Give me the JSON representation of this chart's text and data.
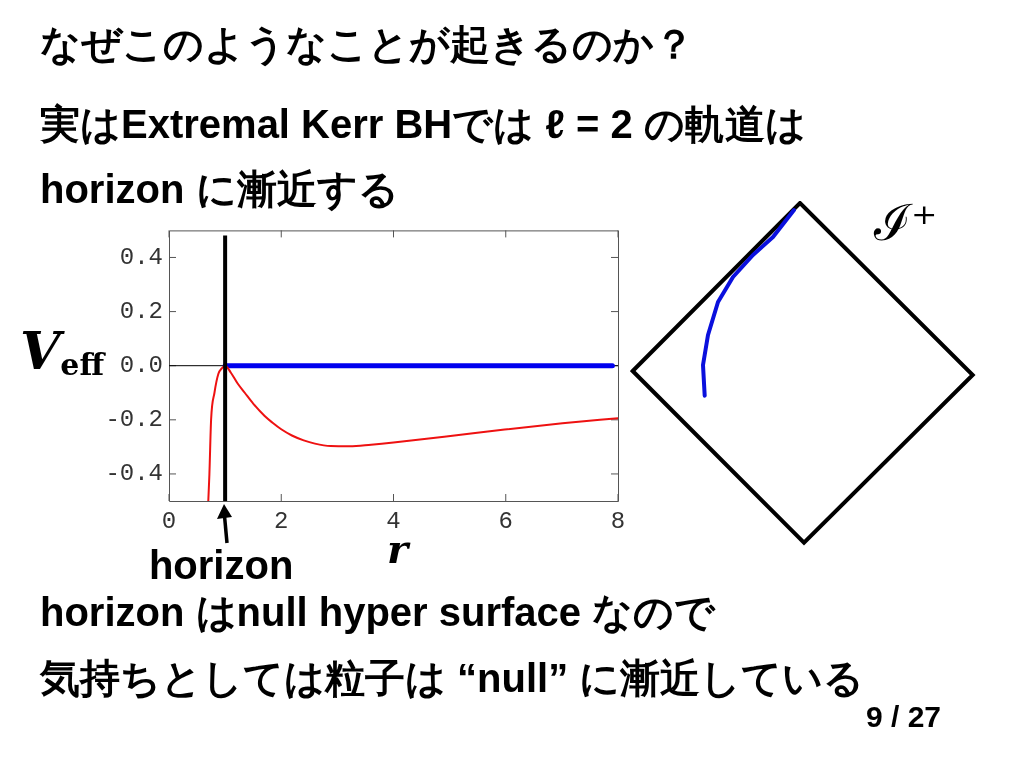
{
  "chart_data": {
    "type": "line",
    "title": "なぜこのようなことが起きるのか？",
    "subtitle": "実はExtremal Kerr BHでは ℓ = 2 の軌道は\nhorizon に漸近する",
    "xlabel": "r",
    "ylabel": "V$_{eff}$",
    "xlim": [
      0,
      8
    ],
    "ylim": [
      -0.5,
      0.5
    ],
    "xticks": [
      0,
      2,
      4,
      6,
      8
    ],
    "yticks": [
      -0.4,
      -0.2,
      {
        "value": 0,
        "label": "0.0"
      },
      0.2,
      0.4
    ],
    "series": [
      {
        "color": "#ee1111",
        "x": [
          0.7,
          0.72,
          0.75,
          0.81,
          0.88,
          0.94,
          1.0,
          1.1,
          1.22,
          1.35,
          1.5,
          1.7,
          1.84,
          2.0,
          2.19,
          2.4,
          2.6,
          2.88,
          3.22,
          3.6,
          4.0,
          4.94,
          5.98,
          7.01,
          8.0
        ],
        "values": [
          -0.5,
          -0.4,
          -0.2,
          -0.1,
          -0.03,
          -0.01,
          0,
          -0.025,
          -0.065,
          -0.1,
          -0.14,
          -0.185,
          -0.21,
          -0.235,
          -0.258,
          -0.276,
          -0.288,
          -0.297,
          -0.298,
          -0.292,
          -0.284,
          -0.262,
          -0.236,
          -0.213,
          -0.194
        ]
      },
      {
        "color": "#0000ee",
        "x": [
          1,
          7.9
        ],
        "values": [
          0,
          0
        ]
      }
    ],
    "ref_lines": [
      {
        "axis": "x",
        "value": 1,
        "label": "horizon",
        "color": "#000000"
      },
      {
        "axis": "y",
        "value": 0,
        "color": "#000000"
      }
    ],
    "grid": false,
    "legend": false,
    "annotations": [
      "horizon はnull hyper surface なので",
      "気持ちとしては粒子は “null” に漸近している",
      "9 / 27",
      "ℐ⁺"
    ]
  }
}
